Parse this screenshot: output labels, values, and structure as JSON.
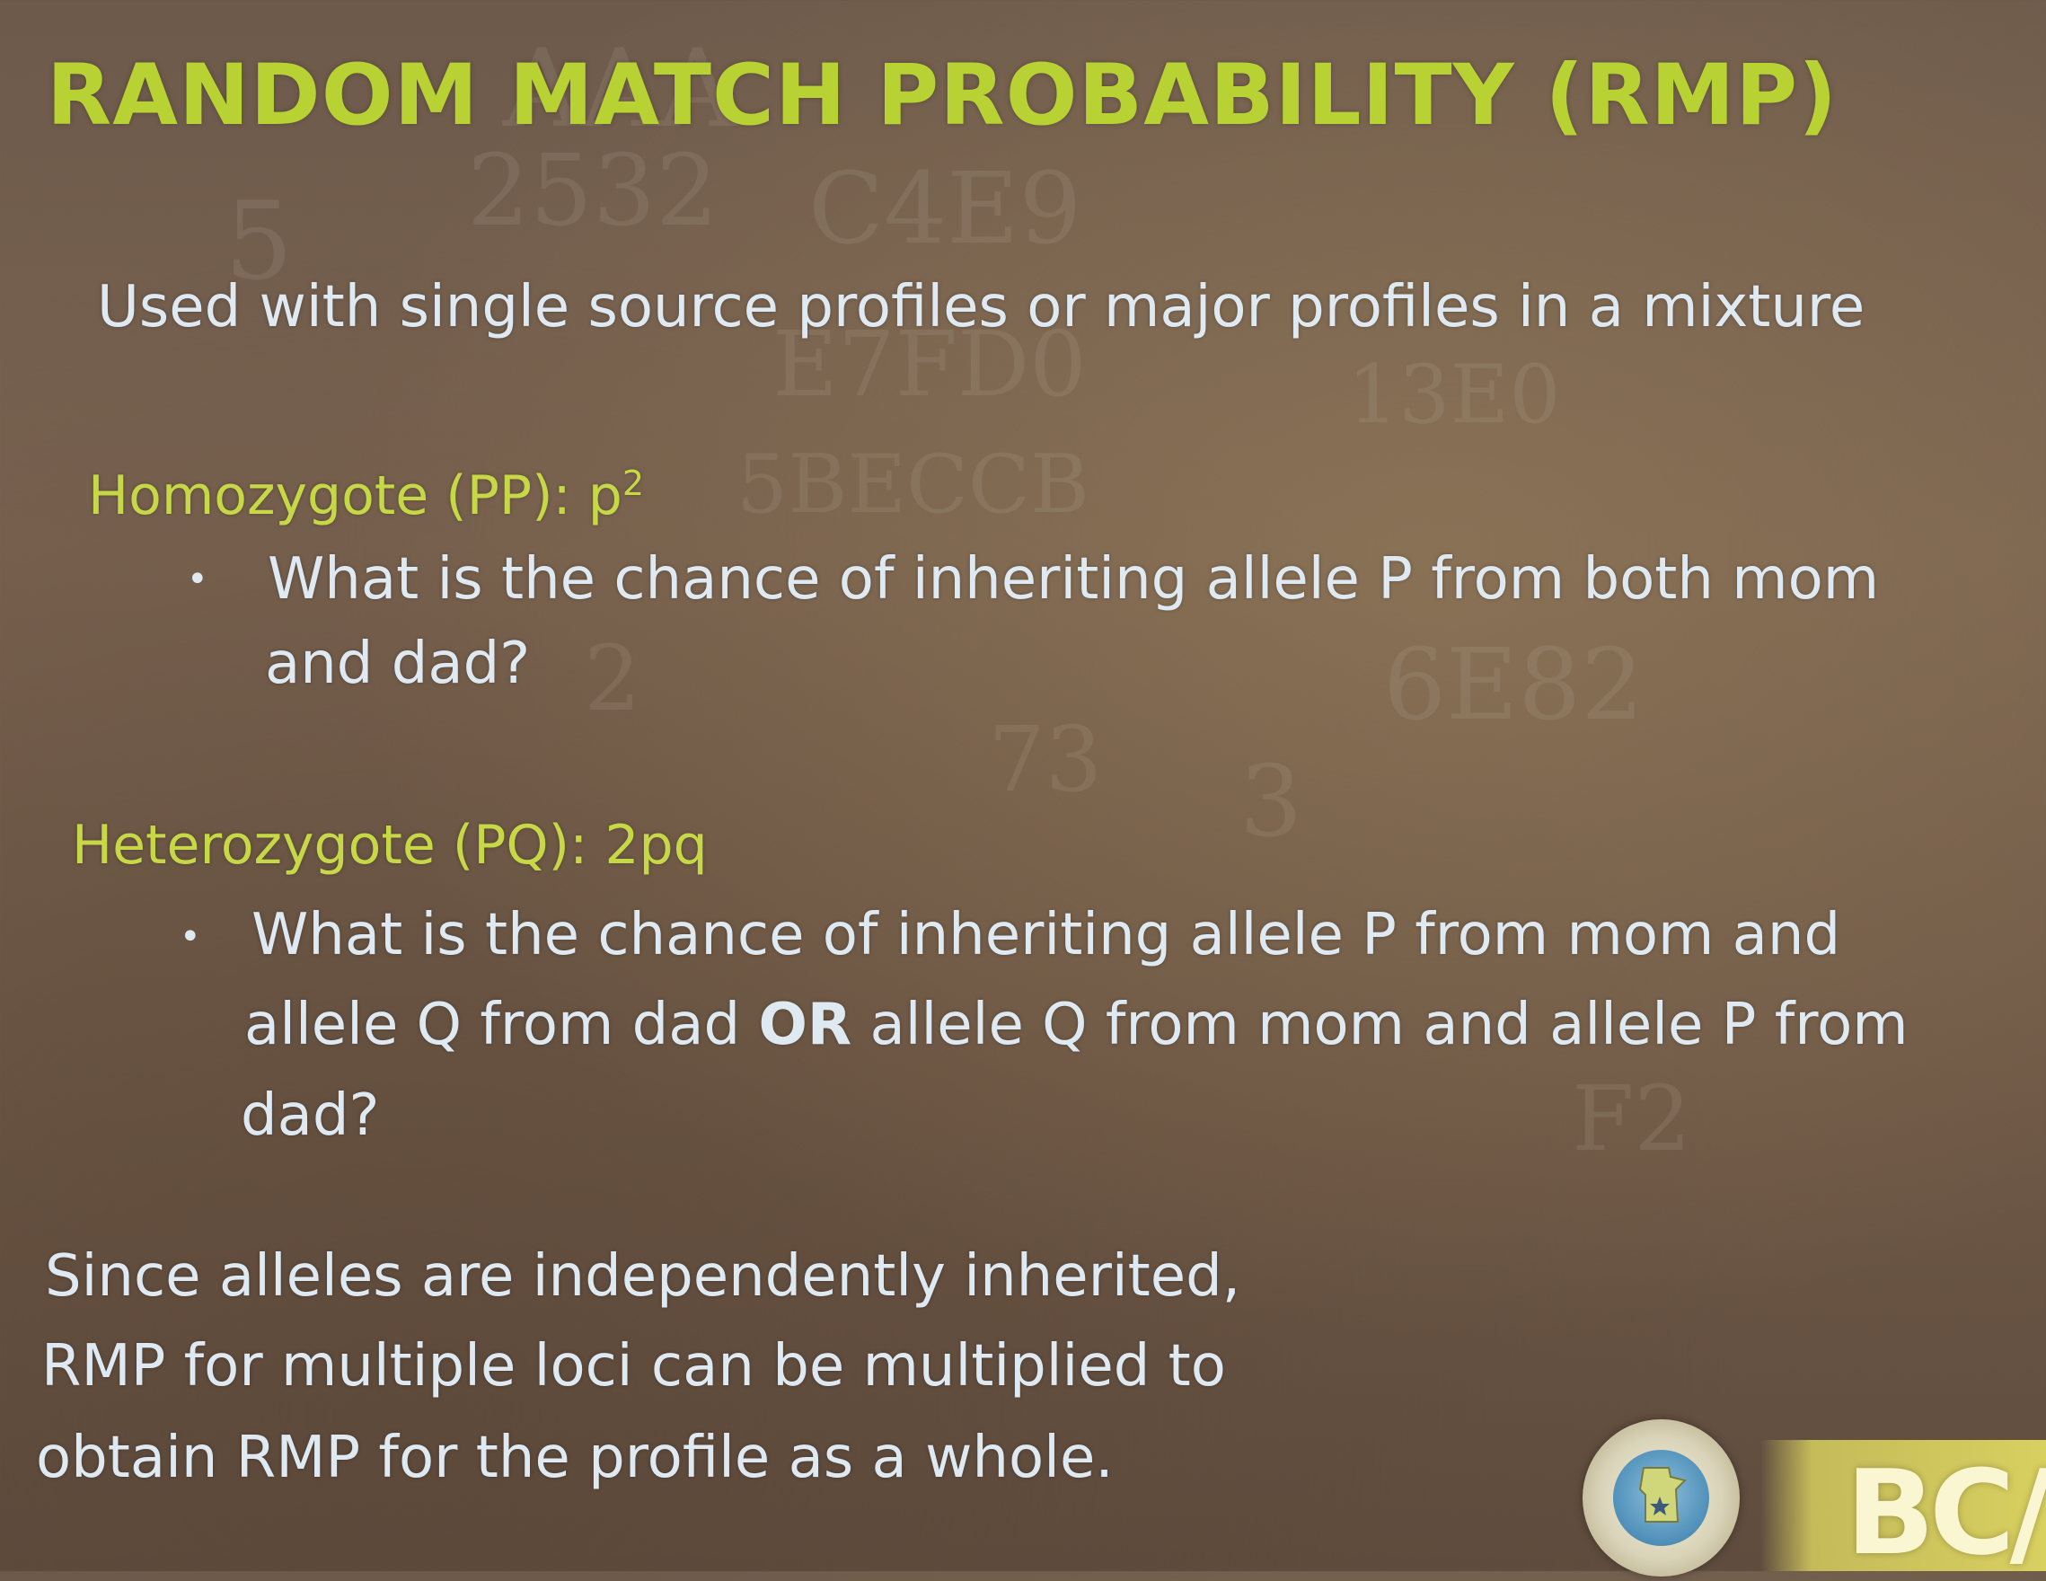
{
  "slide": {
    "title": "RANDOM MATCH PROBABILITY (RMP)",
    "subtitle": "Used with single source profiles or major profiles in a mixture",
    "homozygote": {
      "heading": "Homozygote (PP): p",
      "heading_superscript": "2",
      "bullet_line1": "What is the chance of inheriting allele P from both mom",
      "bullet_line2": "and dad?"
    },
    "heterozygote": {
      "heading": "Heterozygote (PQ): 2pq",
      "bullet_line1": "What is the chance of inheriting allele P from mom and",
      "bullet_line2_part1": "allele Q from dad ",
      "bullet_line2_or": "OR",
      "bullet_line2_part2": " allele Q from mom and allele P from",
      "bullet_line3": "dad?"
    },
    "conclusion": {
      "line1": "Since alleles are independently inherited,",
      "line2": "RMP for multiple loci can be multiplied to",
      "line3": "obtain RMP for the profile as a whole."
    },
    "bullet_glyph": "•"
  },
  "logo": {
    "text": "BC/",
    "seal_icon": "minnesota-seal-icon",
    "bar_color": "#d8d05f"
  },
  "colors": {
    "title": "#b8d233",
    "heading": "#c6d846",
    "body": "#dfe9f2"
  }
}
